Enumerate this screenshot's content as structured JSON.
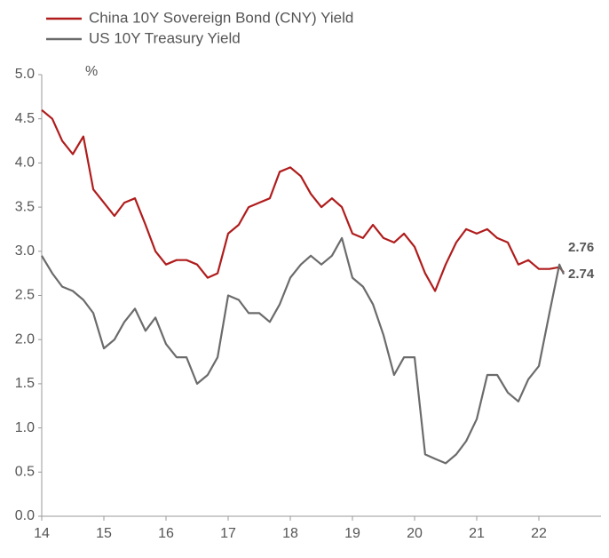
{
  "chart_data": {
    "type": "line",
    "y_label": "%",
    "x": [
      14,
      14.17,
      14.33,
      14.5,
      14.67,
      14.83,
      15,
      15.17,
      15.33,
      15.5,
      15.67,
      15.83,
      16,
      16.17,
      16.33,
      16.5,
      16.67,
      16.83,
      17,
      17.17,
      17.33,
      17.5,
      17.67,
      17.83,
      18,
      18.17,
      18.33,
      18.5,
      18.67,
      18.83,
      19,
      19.17,
      19.33,
      19.5,
      19.67,
      19.83,
      20,
      20.17,
      20.33,
      20.5,
      20.67,
      20.83,
      21,
      21.17,
      21.33,
      21.5,
      21.67,
      21.83,
      22,
      22.17,
      22.33,
      22.4
    ],
    "series": [
      {
        "name": "China 10Y Sovereign Bond (CNY) Yield",
        "color": "#b01c1c",
        "values": [
          4.6,
          4.5,
          4.25,
          4.1,
          4.3,
          3.7,
          3.55,
          3.4,
          3.55,
          3.6,
          3.3,
          3.0,
          2.85,
          2.9,
          2.9,
          2.85,
          2.7,
          2.75,
          3.2,
          3.3,
          3.5,
          3.55,
          3.6,
          3.9,
          3.95,
          3.85,
          3.65,
          3.5,
          3.6,
          3.5,
          3.2,
          3.15,
          3.3,
          3.15,
          3.1,
          3.2,
          3.05,
          2.75,
          2.55,
          2.85,
          3.1,
          3.25,
          3.2,
          3.25,
          3.15,
          3.1,
          2.85,
          2.9,
          2.8,
          2.8,
          2.82,
          2.76
        ]
      },
      {
        "name": "US 10Y Treasury Yield",
        "color": "#6b6b6b",
        "values": [
          2.95,
          2.75,
          2.6,
          2.55,
          2.45,
          2.3,
          1.9,
          2.0,
          2.2,
          2.35,
          2.1,
          2.25,
          1.95,
          1.8,
          1.8,
          1.5,
          1.6,
          1.8,
          2.5,
          2.45,
          2.3,
          2.3,
          2.2,
          2.4,
          2.7,
          2.85,
          2.95,
          2.85,
          2.95,
          3.15,
          2.7,
          2.6,
          2.4,
          2.05,
          1.6,
          1.8,
          1.8,
          0.7,
          0.65,
          0.6,
          0.7,
          0.85,
          1.1,
          1.6,
          1.6,
          1.4,
          1.3,
          1.55,
          1.7,
          2.3,
          2.85,
          2.74
        ]
      }
    ],
    "xlim": [
      14,
      23
    ],
    "xticks": [
      14,
      15,
      16,
      17,
      18,
      19,
      20,
      21,
      22
    ],
    "ylim": [
      0,
      5
    ],
    "yticks": [
      {
        "value": 0,
        "label": "0.0"
      },
      {
        "value": 0.5,
        "label": "0.5"
      },
      {
        "value": 1,
        "label": "1.0"
      },
      {
        "value": 1.5,
        "label": "1.5"
      },
      {
        "value": 2,
        "label": "2.0"
      },
      {
        "value": 2.5,
        "label": "2.5"
      },
      {
        "value": 3,
        "label": "3.0"
      },
      {
        "value": 3.5,
        "label": "3.5"
      },
      {
        "value": 4,
        "label": "4.0"
      },
      {
        "value": 4.5,
        "label": "4.5"
      },
      {
        "value": 5,
        "label": "5.0"
      }
    ],
    "grid": false
  }
}
